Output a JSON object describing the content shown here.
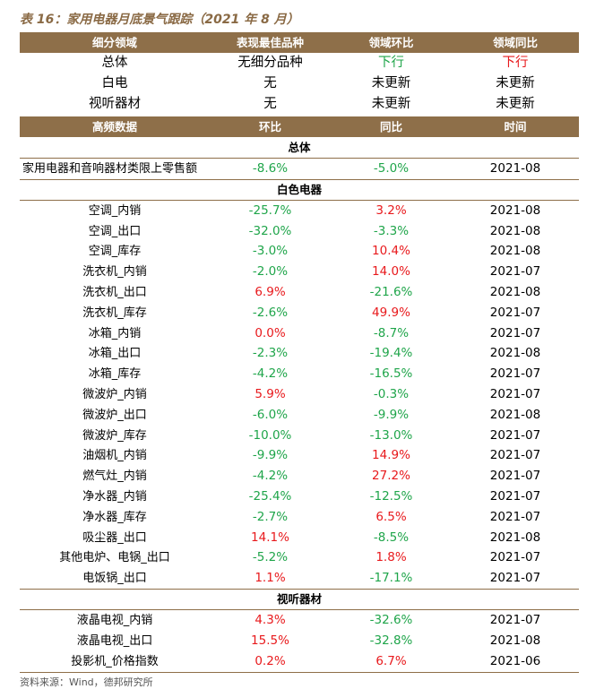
{
  "title": "表 16：家用电器月底景气跟踪（2021 年 8 月）",
  "summary_header": [
    "细分领域",
    "表现最佳品种",
    "领域环比",
    "领域同比"
  ],
  "summary_rows": [
    {
      "name": "总体",
      "best": "无细分品种",
      "mom": "下行",
      "mom_color": "green",
      "yoy": "下行",
      "yoy_color": "red"
    },
    {
      "name": "白电",
      "best": "无",
      "mom": "未更新",
      "mom_color": "",
      "yoy": "未更新",
      "yoy_color": ""
    },
    {
      "name": "视听器材",
      "best": "无",
      "mom": "未更新",
      "mom_color": "",
      "yoy": "未更新",
      "yoy_color": ""
    }
  ],
  "detail_header": [
    "高频数据",
    "环比",
    "同比",
    "时间"
  ],
  "sections": [
    {
      "name": "总体",
      "rows": [
        {
          "name": "家用电器和音响器材类限上零售额",
          "mom": "-8.6%",
          "yoy": "-5.0%",
          "time": "2021-08",
          "left": true
        }
      ]
    },
    {
      "name": "白色电器",
      "rows": [
        {
          "name": "空调_内销",
          "mom": "-25.7%",
          "yoy": "3.2%",
          "time": "2021-08"
        },
        {
          "name": "空调_出口",
          "mom": "-32.0%",
          "yoy": "-3.3%",
          "time": "2021-08"
        },
        {
          "name": "空调_库存",
          "mom": "-3.0%",
          "yoy": "10.4%",
          "time": "2021-08"
        },
        {
          "name": "洗衣机_内销",
          "mom": "-2.0%",
          "yoy": "14.0%",
          "time": "2021-07"
        },
        {
          "name": "洗衣机_出口",
          "mom": "6.9%",
          "yoy": "-21.6%",
          "time": "2021-08"
        },
        {
          "name": "洗衣机_库存",
          "mom": "-2.6%",
          "yoy": "49.9%",
          "time": "2021-07"
        },
        {
          "name": "冰箱_内销",
          "mom": "0.0%",
          "yoy": "-8.7%",
          "time": "2021-07",
          "mom_red": true
        },
        {
          "name": "冰箱_出口",
          "mom": "-2.3%",
          "yoy": "-19.4%",
          "time": "2021-08"
        },
        {
          "name": "冰箱_库存",
          "mom": "-4.2%",
          "yoy": "-16.5%",
          "time": "2021-07"
        },
        {
          "name": "微波炉_内销",
          "mom": "5.9%",
          "yoy": "-0.3%",
          "time": "2021-07"
        },
        {
          "name": "微波炉_出口",
          "mom": "-6.0%",
          "yoy": "-9.9%",
          "time": "2021-08"
        },
        {
          "name": "微波炉_库存",
          "mom": "-10.0%",
          "yoy": "-13.0%",
          "time": "2021-07"
        },
        {
          "name": "油烟机_内销",
          "mom": "-9.9%",
          "yoy": "14.9%",
          "time": "2021-07"
        },
        {
          "name": "燃气灶_内销",
          "mom": "-4.2%",
          "yoy": "27.2%",
          "time": "2021-07"
        },
        {
          "name": "净水器_内销",
          "mom": "-25.4%",
          "yoy": "-12.5%",
          "time": "2021-07"
        },
        {
          "name": "净水器_库存",
          "mom": "-2.7%",
          "yoy": "6.5%",
          "time": "2021-07"
        },
        {
          "name": "吸尘器_出口",
          "mom": "14.1%",
          "yoy": "-8.5%",
          "time": "2021-08"
        },
        {
          "name": "其他电炉、电锅_出口",
          "mom": "-5.2%",
          "yoy": "1.8%",
          "time": "2021-07"
        },
        {
          "name": "电饭锅_出口",
          "mom": "1.1%",
          "yoy": "-17.1%",
          "time": "2021-07"
        }
      ]
    },
    {
      "name": "视听器材",
      "rows": [
        {
          "name": "液晶电视_内销",
          "mom": "4.3%",
          "yoy": "-32.6%",
          "time": "2021-07"
        },
        {
          "name": "液晶电视_出口",
          "mom": "15.5%",
          "yoy": "-32.8%",
          "time": "2021-08"
        },
        {
          "name": "投影机_价格指数",
          "mom": "0.2%",
          "yoy": "6.7%",
          "time": "2021-06"
        }
      ]
    }
  ],
  "source": "资料来源：Wind，德邦研究所"
}
